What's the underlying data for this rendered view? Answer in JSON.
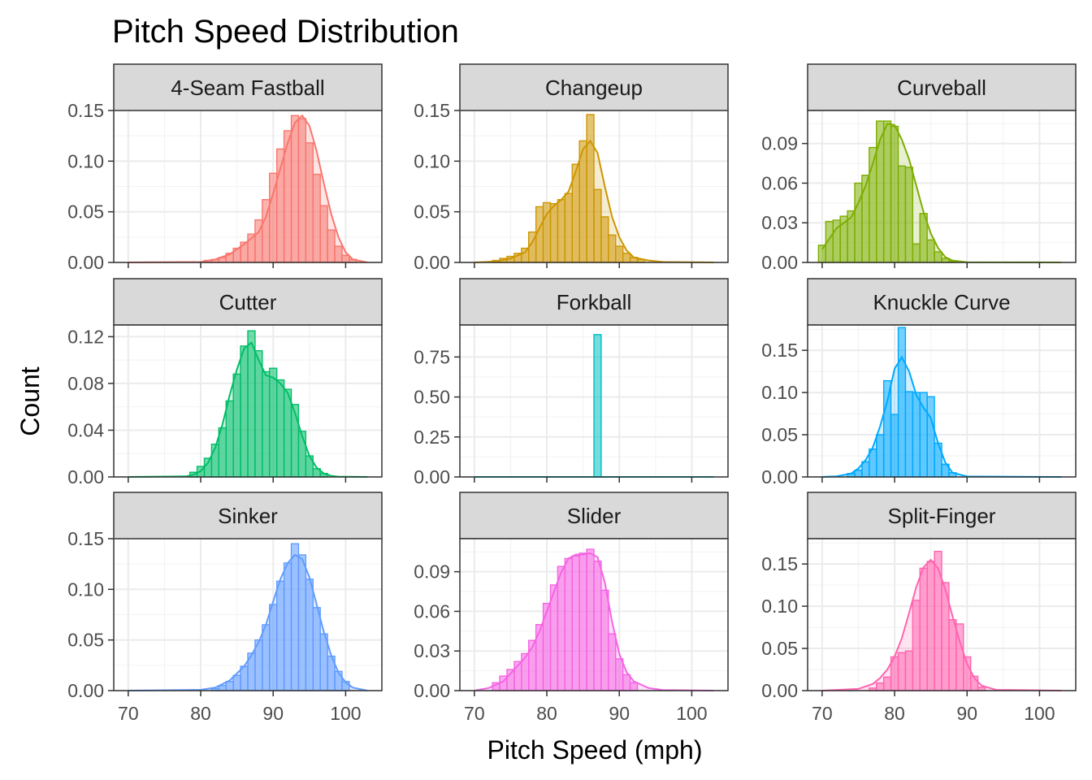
{
  "chart_data": {
    "type": "histogram",
    "title": "Pitch Speed Distribution",
    "xlabel": "Pitch Speed (mph)",
    "ylabel": "Count",
    "xlim": [
      68,
      105
    ],
    "x_ticks": [
      70,
      80,
      90,
      100
    ],
    "bin_width": 1,
    "grid": true,
    "legend": "none",
    "panels": [
      {
        "name": "4-Seam Fastball",
        "color": "#F8766D",
        "ylim": [
          0,
          0.15
        ],
        "y_ticks": [
          "0.00",
          "0.05",
          "0.10",
          "0.15"
        ],
        "density_x": [
          70,
          80,
          82,
          84,
          86,
          88,
          89,
          90,
          91,
          92,
          93,
          94,
          95,
          96,
          97,
          98,
          99,
          100,
          101,
          103
        ],
        "density_y": [
          0,
          0.0005,
          0.003,
          0.008,
          0.018,
          0.03,
          0.045,
          0.068,
          0.093,
          0.118,
          0.138,
          0.145,
          0.135,
          0.11,
          0.078,
          0.048,
          0.025,
          0.01,
          0.003,
          0
        ],
        "bins_x": [
          81,
          82,
          83,
          84,
          85,
          86,
          87,
          88,
          89,
          90,
          91,
          92,
          93,
          94,
          95,
          96,
          97,
          98,
          99,
          100,
          101
        ],
        "bins_y": [
          0.002,
          0.003,
          0.005,
          0.009,
          0.014,
          0.02,
          0.028,
          0.042,
          0.062,
          0.088,
          0.112,
          0.13,
          0.145,
          0.142,
          0.118,
          0.087,
          0.056,
          0.032,
          0.016,
          0.007,
          0.003
        ]
      },
      {
        "name": "Changeup",
        "color": "#CD9600",
        "ylim": [
          0,
          0.15
        ],
        "y_ticks": [
          "0.00",
          "0.05",
          "0.10",
          "0.15"
        ],
        "density_x": [
          70,
          73,
          75,
          77,
          78,
          79,
          80,
          81,
          82,
          83,
          84,
          85,
          86,
          87,
          88,
          89,
          90,
          91,
          92,
          94,
          96,
          103
        ],
        "density_y": [
          0,
          0.001,
          0.004,
          0.01,
          0.02,
          0.034,
          0.048,
          0.056,
          0.062,
          0.07,
          0.09,
          0.112,
          0.12,
          0.108,
          0.075,
          0.045,
          0.025,
          0.012,
          0.005,
          0.002,
          0.0005,
          0
        ],
        "bins_x": [
          73,
          74,
          75,
          76,
          77,
          78,
          79,
          80,
          81,
          82,
          83,
          84,
          85,
          86,
          87,
          88,
          89,
          90,
          91,
          92,
          93
        ],
        "bins_y": [
          0.002,
          0.004,
          0.006,
          0.009,
          0.014,
          0.03,
          0.055,
          0.059,
          0.058,
          0.062,
          0.068,
          0.097,
          0.12,
          0.146,
          0.072,
          0.045,
          0.027,
          0.016,
          0.009,
          0.005,
          0.003
        ]
      },
      {
        "name": "Curveball",
        "color": "#7CAE00",
        "ylim": [
          0,
          0.115
        ],
        "y_ticks": [
          "0.00",
          "0.03",
          "0.06",
          "0.09"
        ],
        "density_x": [
          70,
          71,
          72,
          73,
          74,
          75,
          76,
          77,
          78,
          79,
          80,
          81,
          82,
          83,
          84,
          85,
          86,
          87,
          88,
          90,
          103
        ],
        "density_y": [
          0.01,
          0.018,
          0.026,
          0.03,
          0.034,
          0.045,
          0.058,
          0.075,
          0.093,
          0.105,
          0.104,
          0.093,
          0.078,
          0.058,
          0.038,
          0.022,
          0.011,
          0.004,
          0.0015,
          0.0002,
          0
        ],
        "bins_x": [
          70,
          71,
          72,
          73,
          74,
          75,
          76,
          77,
          78,
          79,
          80,
          81,
          82,
          83,
          84,
          85,
          86,
          87,
          88
        ],
        "bins_y": [
          0.013,
          0.031,
          0.032,
          0.035,
          0.039,
          0.06,
          0.066,
          0.087,
          0.107,
          0.107,
          0.103,
          0.073,
          0.072,
          0.014,
          0.037,
          0.017,
          0.008,
          0.003,
          0.001
        ]
      },
      {
        "name": "Cutter",
        "color": "#00BE67",
        "ylim": [
          0,
          0.13
        ],
        "y_ticks": [
          "0.00",
          "0.04",
          "0.08",
          "0.12"
        ],
        "density_x": [
          70,
          78,
          79,
          80,
          81,
          82,
          83,
          84,
          85,
          86,
          87,
          88,
          89,
          90,
          91,
          92,
          93,
          94,
          95,
          96,
          97,
          98,
          99,
          103
        ],
        "density_y": [
          0,
          0.0005,
          0.002,
          0.005,
          0.012,
          0.025,
          0.045,
          0.07,
          0.092,
          0.11,
          0.115,
          0.1,
          0.087,
          0.085,
          0.08,
          0.072,
          0.055,
          0.035,
          0.018,
          0.008,
          0.003,
          0.001,
          0.0003,
          0
        ],
        "bins_x": [
          79,
          80,
          81,
          82,
          83,
          84,
          85,
          86,
          87,
          88,
          89,
          90,
          91,
          92,
          93,
          94,
          95,
          96,
          97
        ],
        "bins_y": [
          0.004,
          0.009,
          0.016,
          0.028,
          0.042,
          0.065,
          0.088,
          0.112,
          0.125,
          0.108,
          0.09,
          0.093,
          0.083,
          0.075,
          0.062,
          0.039,
          0.018,
          0.007,
          0.003
        ]
      },
      {
        "name": "Forkball",
        "color": "#00BFC4",
        "ylim": [
          0,
          0.95
        ],
        "y_ticks": [
          "0.00",
          "0.25",
          "0.50",
          "0.75"
        ],
        "density_x": [
          70,
          103
        ],
        "density_y": [
          0,
          0
        ],
        "bins_x": [
          87
        ],
        "bins_y": [
          0.89
        ]
      },
      {
        "name": "Knuckle Curve",
        "color": "#00A9FF",
        "ylim": [
          0,
          0.18
        ],
        "y_ticks": [
          "0.00",
          "0.05",
          "0.10",
          "0.15"
        ],
        "density_x": [
          70,
          72,
          74,
          75,
          76,
          77,
          78,
          79,
          80,
          81,
          82,
          83,
          84,
          85,
          86,
          87,
          88,
          90,
          103
        ],
        "density_y": [
          0,
          0.0008,
          0.004,
          0.01,
          0.02,
          0.035,
          0.06,
          0.09,
          0.128,
          0.142,
          0.125,
          0.097,
          0.082,
          0.07,
          0.04,
          0.017,
          0.005,
          0.0006,
          0
        ],
        "bins_x": [
          74,
          75,
          76,
          77,
          78,
          79,
          80,
          81,
          82,
          83,
          84,
          85,
          86,
          87,
          88
        ],
        "bins_y": [
          0.004,
          0.008,
          0.018,
          0.033,
          0.05,
          0.114,
          0.074,
          0.177,
          0.101,
          0.1,
          0.1,
          0.095,
          0.04,
          0.015,
          0.005
        ]
      },
      {
        "name": "Sinker",
        "color": "#619CFF",
        "ylim": [
          0,
          0.15
        ],
        "y_ticks": [
          "0.00",
          "0.05",
          "0.10",
          "0.15"
        ],
        "density_x": [
          70,
          80,
          82,
          84,
          86,
          87,
          88,
          89,
          90,
          91,
          92,
          93,
          94,
          95,
          96,
          97,
          98,
          99,
          100,
          101,
          103
        ],
        "density_y": [
          0,
          0.0008,
          0.003,
          0.01,
          0.024,
          0.035,
          0.048,
          0.065,
          0.088,
          0.11,
          0.126,
          0.134,
          0.13,
          0.112,
          0.085,
          0.058,
          0.035,
          0.018,
          0.008,
          0.003,
          0
        ],
        "bins_x": [
          82,
          83,
          84,
          85,
          86,
          87,
          88,
          89,
          90,
          91,
          92,
          93,
          94,
          95,
          96,
          97,
          98,
          99,
          100
        ],
        "bins_y": [
          0.002,
          0.005,
          0.009,
          0.015,
          0.024,
          0.037,
          0.05,
          0.065,
          0.085,
          0.108,
          0.126,
          0.145,
          0.134,
          0.11,
          0.082,
          0.056,
          0.034,
          0.019,
          0.009
        ]
      },
      {
        "name": "Slider",
        "color": "#F564E3",
        "ylim": [
          0,
          0.115
        ],
        "y_ticks": [
          "0.00",
          "0.03",
          "0.06",
          "0.09"
        ],
        "density_x": [
          70,
          72,
          74,
          75,
          76,
          77,
          78,
          79,
          80,
          81,
          82,
          83,
          84,
          85,
          86,
          87,
          88,
          89,
          90,
          91,
          92,
          94,
          96,
          103
        ],
        "density_y": [
          0,
          0.002,
          0.007,
          0.013,
          0.019,
          0.025,
          0.033,
          0.045,
          0.06,
          0.075,
          0.09,
          0.1,
          0.103,
          0.103,
          0.104,
          0.101,
          0.082,
          0.052,
          0.028,
          0.014,
          0.007,
          0.002,
          0.0005,
          0
        ],
        "bins_x": [
          73,
          74,
          75,
          76,
          77,
          78,
          79,
          80,
          81,
          82,
          83,
          84,
          85,
          86,
          87,
          88,
          89,
          90,
          91,
          92
        ],
        "bins_y": [
          0.006,
          0.011,
          0.016,
          0.022,
          0.028,
          0.038,
          0.05,
          0.066,
          0.08,
          0.094,
          0.1,
          0.102,
          0.104,
          0.107,
          0.098,
          0.076,
          0.043,
          0.024,
          0.012,
          0.006
        ]
      },
      {
        "name": "Split-Finger",
        "color": "#FF64B0",
        "ylim": [
          0,
          0.18
        ],
        "y_ticks": [
          "0.00",
          "0.05",
          "0.10",
          "0.15"
        ],
        "density_x": [
          70,
          75,
          77,
          78,
          79,
          80,
          81,
          82,
          83,
          84,
          85,
          86,
          87,
          88,
          89,
          90,
          91,
          92,
          94,
          103
        ],
        "density_y": [
          0,
          0.002,
          0.008,
          0.015,
          0.025,
          0.04,
          0.062,
          0.092,
          0.123,
          0.146,
          0.155,
          0.145,
          0.12,
          0.088,
          0.058,
          0.032,
          0.015,
          0.006,
          0.001,
          0
        ],
        "bins_x": [
          77,
          78,
          79,
          80,
          81,
          82,
          83,
          84,
          85,
          86,
          87,
          88,
          89,
          90,
          91,
          92
        ],
        "bins_y": [
          0.003,
          0.009,
          0.016,
          0.04,
          0.045,
          0.047,
          0.107,
          0.145,
          0.153,
          0.165,
          0.128,
          0.084,
          0.079,
          0.04,
          0.017,
          0.004
        ]
      }
    ]
  }
}
